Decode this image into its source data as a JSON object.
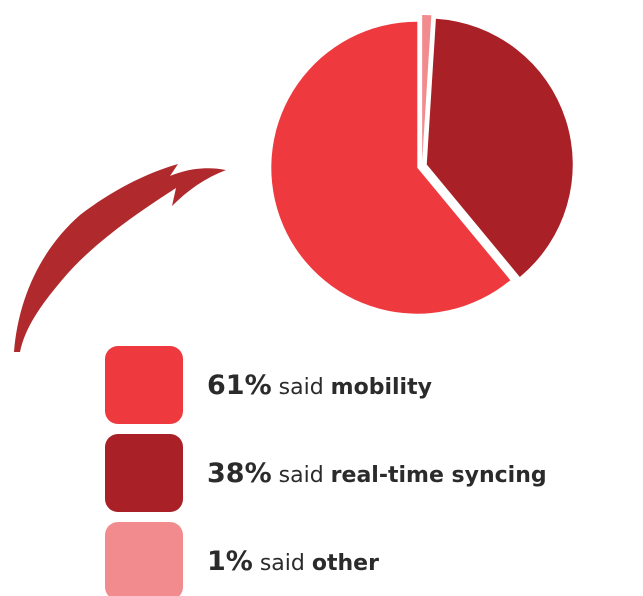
{
  "chart_data": {
    "type": "pie",
    "categories": [
      "mobility",
      "real-time syncing",
      "other"
    ],
    "values": [
      61,
      38,
      1
    ],
    "value_labels": [
      "61%",
      "38%",
      "1%"
    ],
    "colors": [
      "#ee3a3e",
      "#a92027",
      "#f28b8e"
    ],
    "legend_connector": "said"
  }
}
